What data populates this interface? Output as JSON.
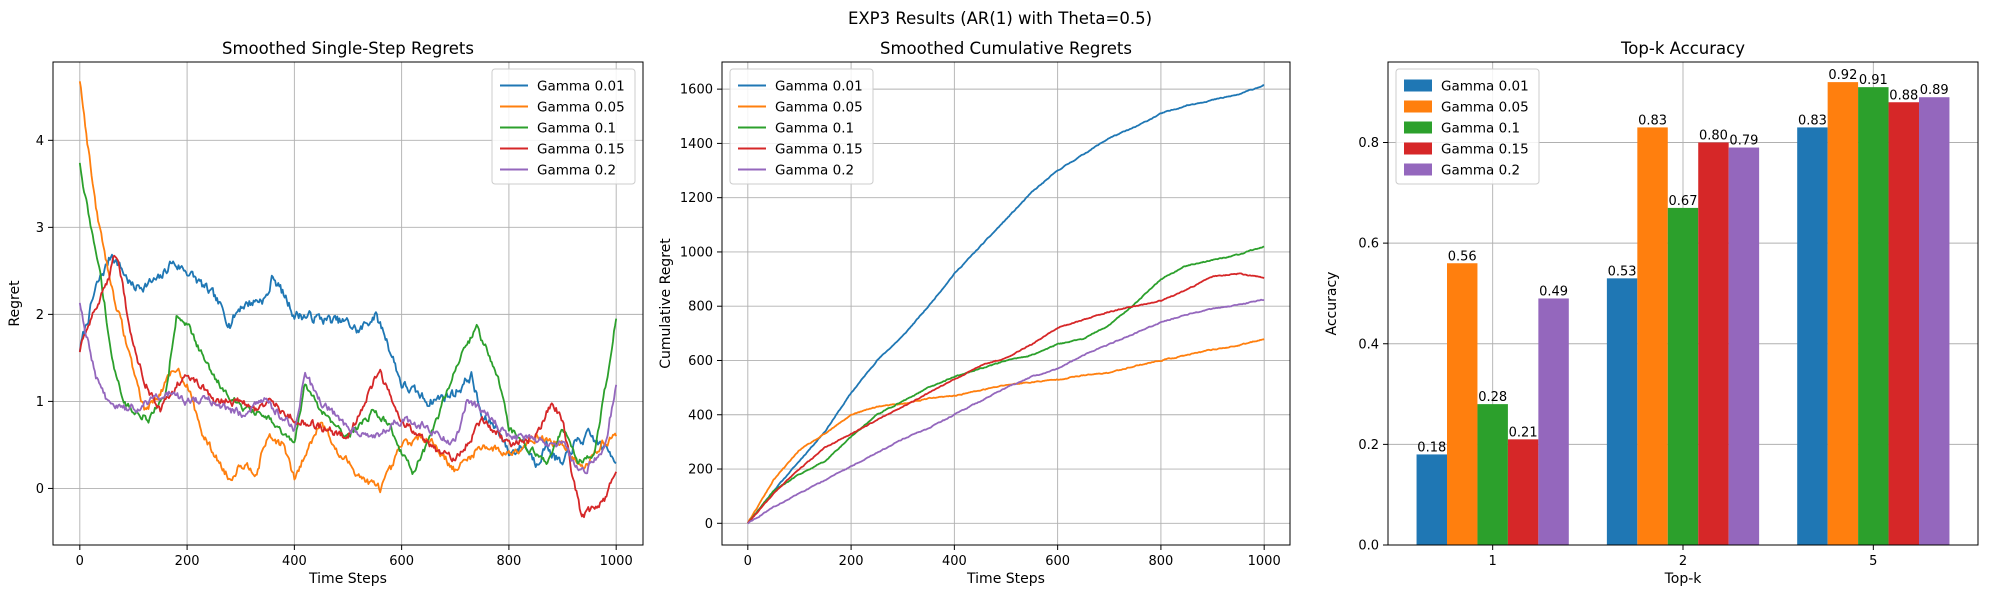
{
  "figure_title": "EXP3 Results (AR(1) with Theta=0.5)",
  "colors": {
    "Gamma 0.01": "#1f77b4",
    "Gamma 0.05": "#ff7f0e",
    "Gamma 0.1": "#2ca02c",
    "Gamma 0.15": "#d62728",
    "Gamma 0.2": "#9467bd"
  },
  "chart_data": [
    {
      "type": "line",
      "title": "Smoothed Single-Step Regrets",
      "xlabel": "Time Steps",
      "ylabel": "Regret",
      "xlim": [
        -50,
        1050
      ],
      "ylim": [
        -0.65,
        4.9
      ],
      "xticks": [
        0,
        200,
        400,
        600,
        800,
        1000
      ],
      "yticks": [
        0,
        1,
        2,
        3,
        4
      ],
      "grid": true,
      "legend_position": "top-right",
      "noise_seed": 7,
      "series": [
        {
          "name": "Gamma 0.01",
          "x": [
            0,
            30,
            60,
            80,
            100,
            150,
            170,
            200,
            250,
            280,
            300,
            350,
            360,
            400,
            450,
            500,
            520,
            550,
            570,
            600,
            650,
            700,
            730,
            750,
            780,
            800,
            830,
            850,
            870,
            900,
            920,
            950,
            970,
            1000
          ],
          "y": [
            1.6,
            2.3,
            2.7,
            2.5,
            2.3,
            2.4,
            2.6,
            2.5,
            2.2,
            1.9,
            2.1,
            2.2,
            2.45,
            2.0,
            1.95,
            1.9,
            1.8,
            2.0,
            1.75,
            1.2,
            1.0,
            1.1,
            1.3,
            0.8,
            0.7,
            0.4,
            0.5,
            0.3,
            0.5,
            0.25,
            0.5,
            0.6,
            0.5,
            0.35
          ],
          "noise": 0.1
        },
        {
          "name": "Gamma 0.05",
          "x": [
            0,
            30,
            60,
            90,
            120,
            150,
            180,
            200,
            230,
            260,
            280,
            300,
            330,
            350,
            380,
            400,
            450,
            480,
            500,
            530,
            560,
            580,
            600,
            650,
            700,
            750,
            800,
            850,
            900,
            940,
            970,
            1000
          ],
          "y": [
            4.7,
            3.2,
            2.3,
            1.6,
            0.9,
            1.1,
            1.4,
            1.2,
            0.6,
            0.3,
            0.1,
            0.3,
            0.2,
            0.6,
            0.5,
            0.1,
            0.8,
            0.4,
            0.3,
            0.1,
            0.0,
            0.2,
            0.5,
            0.6,
            0.2,
            0.5,
            0.4,
            0.6,
            0.5,
            0.2,
            0.5,
            0.6
          ],
          "noise": 0.08
        },
        {
          "name": "Gamma 0.1",
          "x": [
            0,
            20,
            40,
            60,
            80,
            100,
            130,
            160,
            180,
            200,
            230,
            260,
            300,
            350,
            400,
            420,
            450,
            500,
            550,
            580,
            600,
            620,
            650,
            700,
            740,
            780,
            800,
            830,
            870,
            900,
            930,
            960,
            1000
          ],
          "y": [
            3.75,
            3.0,
            2.4,
            1.5,
            1.0,
            0.9,
            0.8,
            1.1,
            2.0,
            1.9,
            1.5,
            1.2,
            0.95,
            0.8,
            0.5,
            1.2,
            0.9,
            0.6,
            0.9,
            0.7,
            0.4,
            0.2,
            0.5,
            1.4,
            1.85,
            1.3,
            0.7,
            0.5,
            0.3,
            0.7,
            0.3,
            0.4,
            1.95
          ],
          "noise": 0.07
        },
        {
          "name": "Gamma 0.15",
          "x": [
            0,
            30,
            55,
            65,
            75,
            100,
            130,
            150,
            200,
            250,
            300,
            330,
            350,
            400,
            450,
            500,
            550,
            560,
            600,
            650,
            700,
            750,
            800,
            850,
            880,
            900,
            920,
            935,
            960,
            980,
            1000
          ],
          "y": [
            1.6,
            2.1,
            2.45,
            2.7,
            2.5,
            1.6,
            1.1,
            0.9,
            1.35,
            1.0,
            1.0,
            0.9,
            1.0,
            0.8,
            0.7,
            0.6,
            1.25,
            1.3,
            0.8,
            0.5,
            0.3,
            0.8,
            0.5,
            0.6,
            1.0,
            0.8,
            0.1,
            -0.3,
            -0.25,
            -0.1,
            0.2
          ],
          "noise": 0.08
        },
        {
          "name": "Gamma 0.2",
          "x": [
            0,
            15,
            30,
            50,
            80,
            110,
            140,
            170,
            200,
            250,
            300,
            350,
            380,
            400,
            420,
            450,
            500,
            550,
            600,
            650,
            700,
            720,
            750,
            800,
            850,
            900,
            920,
            940,
            960,
            980,
            1000
          ],
          "y": [
            2.1,
            1.7,
            1.3,
            1.0,
            0.9,
            0.95,
            1.05,
            1.1,
            1.0,
            1.0,
            0.85,
            1.0,
            0.8,
            0.7,
            1.3,
            1.0,
            0.7,
            0.6,
            0.8,
            0.7,
            0.5,
            1.0,
            0.9,
            0.6,
            0.55,
            0.5,
            0.3,
            0.2,
            0.35,
            0.5,
            1.2
          ],
          "noise": 0.08
        }
      ]
    },
    {
      "type": "line",
      "title": "Smoothed Cumulative Regrets",
      "xlabel": "Time Steps",
      "ylabel": "Cumulative Regret",
      "xlim": [
        -50,
        1050
      ],
      "ylim": [
        -80,
        1700
      ],
      "xticks": [
        0,
        200,
        400,
        600,
        800,
        1000
      ],
      "yticks": [
        0,
        200,
        400,
        600,
        800,
        1000,
        1200,
        1400,
        1600
      ],
      "grid": true,
      "legend_position": "top-left",
      "noise_seed": 11,
      "series": [
        {
          "name": "Gamma 0.01",
          "x": [
            0,
            50,
            100,
            150,
            200,
            250,
            300,
            350,
            400,
            450,
            500,
            550,
            600,
            650,
            700,
            750,
            800,
            850,
            900,
            950,
            1000
          ],
          "y": [
            0,
            120,
            230,
            340,
            480,
            600,
            690,
            800,
            920,
            1020,
            1120,
            1220,
            1300,
            1360,
            1420,
            1460,
            1510,
            1540,
            1560,
            1580,
            1615
          ],
          "noise": 3
        },
        {
          "name": "Gamma 0.05",
          "x": [
            0,
            50,
            100,
            150,
            200,
            250,
            300,
            350,
            400,
            450,
            500,
            550,
            600,
            650,
            700,
            750,
            800,
            850,
            900,
            950,
            1000
          ],
          "y": [
            0,
            160,
            270,
            330,
            400,
            430,
            440,
            460,
            470,
            490,
            510,
            520,
            530,
            545,
            555,
            580,
            600,
            620,
            640,
            655,
            680
          ],
          "noise": 3
        },
        {
          "name": "Gamma 0.1",
          "x": [
            0,
            50,
            100,
            150,
            200,
            250,
            300,
            350,
            400,
            450,
            500,
            550,
            600,
            650,
            700,
            750,
            800,
            850,
            900,
            950,
            1000
          ],
          "y": [
            0,
            120,
            180,
            230,
            320,
            400,
            450,
            500,
            540,
            570,
            600,
            620,
            660,
            680,
            730,
            810,
            900,
            950,
            970,
            990,
            1020
          ],
          "noise": 3
        },
        {
          "name": "Gamma 0.15",
          "x": [
            0,
            50,
            100,
            150,
            200,
            250,
            300,
            350,
            400,
            450,
            500,
            550,
            600,
            650,
            700,
            750,
            800,
            850,
            900,
            950,
            1000
          ],
          "y": [
            0,
            110,
            200,
            280,
            330,
            380,
            430,
            480,
            530,
            580,
            610,
            660,
            720,
            750,
            780,
            800,
            820,
            860,
            910,
            920,
            905
          ],
          "noise": 3
        },
        {
          "name": "Gamma 0.2",
          "x": [
            0,
            50,
            100,
            150,
            200,
            250,
            300,
            350,
            400,
            450,
            500,
            550,
            600,
            650,
            700,
            750,
            800,
            850,
            900,
            950,
            1000
          ],
          "y": [
            0,
            60,
            110,
            160,
            210,
            260,
            310,
            350,
            400,
            450,
            500,
            540,
            570,
            620,
            660,
            700,
            740,
            770,
            790,
            805,
            825
          ],
          "noise": 3
        }
      ]
    },
    {
      "type": "bar",
      "title": "Top-k Accuracy",
      "xlabel": "Top-k",
      "ylabel": "Accuracy",
      "categories": [
        "1",
        "2",
        "5"
      ],
      "ylim": [
        0,
        0.96
      ],
      "yticks": [
        0.0,
        0.2,
        0.4,
        0.6,
        0.8
      ],
      "grid": true,
      "legend_position": "top-left",
      "series": [
        {
          "name": "Gamma 0.01",
          "values": [
            0.18,
            0.53,
            0.83
          ],
          "labels": [
            "0.18",
            "0.53",
            "0.83"
          ]
        },
        {
          "name": "Gamma 0.05",
          "values": [
            0.56,
            0.83,
            0.92
          ],
          "labels": [
            "0.56",
            "0.83",
            "0.92"
          ]
        },
        {
          "name": "Gamma 0.1",
          "values": [
            0.28,
            0.67,
            0.91
          ],
          "labels": [
            "0.28",
            "0.67",
            "0.91"
          ]
        },
        {
          "name": "Gamma 0.15",
          "values": [
            0.21,
            0.8,
            0.88
          ],
          "labels": [
            "0.21",
            "0.80",
            "0.88"
          ]
        },
        {
          "name": "Gamma 0.2",
          "values": [
            0.49,
            0.79,
            0.89
          ],
          "labels": [
            "0.49",
            "0.79",
            "0.89"
          ]
        }
      ]
    }
  ]
}
